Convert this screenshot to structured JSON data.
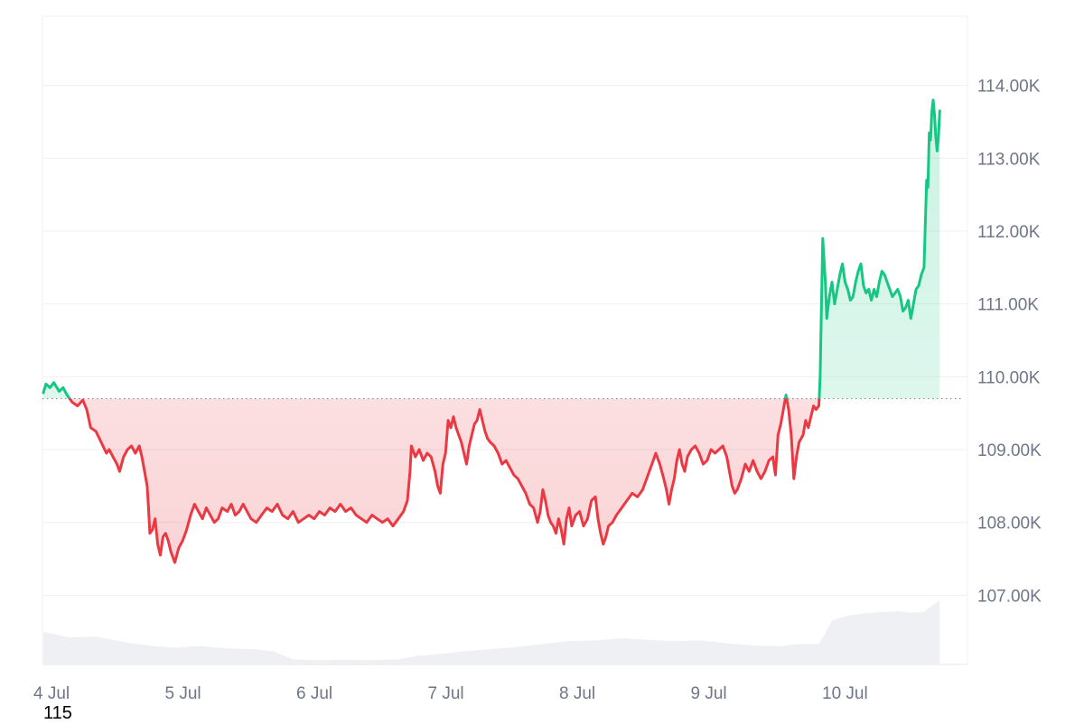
{
  "chart_data": {
    "type": "area",
    "baseline": 109700,
    "ylim": [
      106050,
      114950
    ],
    "y_ticks": [
      107000,
      108000,
      109000,
      110000,
      111000,
      112000,
      113000,
      114000
    ],
    "y_tick_labels": [
      "107.00K",
      "108.00K",
      "109.00K",
      "110.00K",
      "111.00K",
      "112.00K",
      "113.00K",
      "114.00K"
    ],
    "x_range": [
      0,
      7.08
    ],
    "x_ticks": [
      0,
      1,
      2,
      3,
      4,
      5,
      6
    ],
    "x_tick_labels": [
      "4 Jul",
      "5 Jul",
      "6 Jul",
      "7 Jul",
      "8 Jul",
      "9 Jul",
      "10 Jul"
    ],
    "colors": {
      "up": "#16c784",
      "down": "#ea3943",
      "volume": "#eef0f3",
      "grid": "#eef0f3",
      "tick_text": "#6e7687"
    },
    "price": [
      [
        0.0,
        109780
      ],
      [
        0.02,
        109900
      ],
      [
        0.05,
        109850
      ],
      [
        0.08,
        109920
      ],
      [
        0.12,
        109800
      ],
      [
        0.15,
        109850
      ],
      [
        0.18,
        109750
      ],
      [
        0.2,
        109700
      ],
      [
        0.22,
        109650
      ],
      [
        0.26,
        109600
      ],
      [
        0.3,
        109680
      ],
      [
        0.33,
        109550
      ],
      [
        0.36,
        109300
      ],
      [
        0.4,
        109250
      ],
      [
        0.44,
        109100
      ],
      [
        0.48,
        108950
      ],
      [
        0.5,
        109000
      ],
      [
        0.53,
        108900
      ],
      [
        0.56,
        108800
      ],
      [
        0.58,
        108700
      ],
      [
        0.61,
        108900
      ],
      [
        0.64,
        109000
      ],
      [
        0.67,
        109050
      ],
      [
        0.7,
        108950
      ],
      [
        0.73,
        109050
      ],
      [
        0.75,
        108900
      ],
      [
        0.77,
        108700
      ],
      [
        0.79,
        108500
      ],
      [
        0.8,
        108200
      ],
      [
        0.81,
        107850
      ],
      [
        0.83,
        107900
      ],
      [
        0.85,
        108050
      ],
      [
        0.87,
        107700
      ],
      [
        0.89,
        107550
      ],
      [
        0.91,
        107800
      ],
      [
        0.93,
        107850
      ],
      [
        0.95,
        107750
      ],
      [
        0.97,
        107600
      ],
      [
        1.0,
        107450
      ],
      [
        1.03,
        107650
      ],
      [
        1.06,
        107750
      ],
      [
        1.09,
        107900
      ],
      [
        1.12,
        108100
      ],
      [
        1.15,
        108250
      ],
      [
        1.18,
        108150
      ],
      [
        1.21,
        108050
      ],
      [
        1.24,
        108200
      ],
      [
        1.27,
        108100
      ],
      [
        1.3,
        108000
      ],
      [
        1.33,
        108050
      ],
      [
        1.36,
        108200
      ],
      [
        1.4,
        108150
      ],
      [
        1.43,
        108250
      ],
      [
        1.46,
        108100
      ],
      [
        1.49,
        108150
      ],
      [
        1.52,
        108250
      ],
      [
        1.55,
        108150
      ],
      [
        1.58,
        108050
      ],
      [
        1.62,
        108000
      ],
      [
        1.66,
        108100
      ],
      [
        1.7,
        108200
      ],
      [
        1.74,
        108150
      ],
      [
        1.78,
        108250
      ],
      [
        1.82,
        108100
      ],
      [
        1.86,
        108050
      ],
      [
        1.9,
        108150
      ],
      [
        1.94,
        108000
      ],
      [
        1.98,
        108050
      ],
      [
        2.02,
        108100
      ],
      [
        2.06,
        108050
      ],
      [
        2.1,
        108150
      ],
      [
        2.14,
        108100
      ],
      [
        2.18,
        108200
      ],
      [
        2.22,
        108150
      ],
      [
        2.26,
        108250
      ],
      [
        2.3,
        108150
      ],
      [
        2.34,
        108200
      ],
      [
        2.38,
        108100
      ],
      [
        2.42,
        108050
      ],
      [
        2.46,
        108000
      ],
      [
        2.5,
        108100
      ],
      [
        2.54,
        108050
      ],
      [
        2.58,
        108000
      ],
      [
        2.62,
        108050
      ],
      [
        2.66,
        107950
      ],
      [
        2.7,
        108050
      ],
      [
        2.74,
        108150
      ],
      [
        2.77,
        108300
      ],
      [
        2.79,
        108700
      ],
      [
        2.8,
        109050
      ],
      [
        2.83,
        108900
      ],
      [
        2.86,
        109000
      ],
      [
        2.89,
        108850
      ],
      [
        2.92,
        108950
      ],
      [
        2.95,
        108900
      ],
      [
        2.98,
        108700
      ],
      [
        3.0,
        108500
      ],
      [
        3.02,
        108400
      ],
      [
        3.04,
        108800
      ],
      [
        3.06,
        108950
      ],
      [
        3.08,
        109400
      ],
      [
        3.1,
        109300
      ],
      [
        3.12,
        109450
      ],
      [
        3.14,
        109300
      ],
      [
        3.16,
        109200
      ],
      [
        3.18,
        109100
      ],
      [
        3.2,
        108950
      ],
      [
        3.22,
        108800
      ],
      [
        3.24,
        109050
      ],
      [
        3.26,
        109200
      ],
      [
        3.28,
        109350
      ],
      [
        3.3,
        109400
      ],
      [
        3.32,
        109550
      ],
      [
        3.34,
        109400
      ],
      [
        3.36,
        109250
      ],
      [
        3.38,
        109150
      ],
      [
        3.4,
        109100
      ],
      [
        3.43,
        109050
      ],
      [
        3.46,
        108950
      ],
      [
        3.49,
        108800
      ],
      [
        3.52,
        108850
      ],
      [
        3.55,
        108750
      ],
      [
        3.58,
        108650
      ],
      [
        3.61,
        108600
      ],
      [
        3.64,
        108500
      ],
      [
        3.67,
        108400
      ],
      [
        3.7,
        108250
      ],
      [
        3.73,
        108200
      ],
      [
        3.76,
        108000
      ],
      [
        3.78,
        108150
      ],
      [
        3.8,
        108450
      ],
      [
        3.82,
        108300
      ],
      [
        3.84,
        108100
      ],
      [
        3.86,
        108000
      ],
      [
        3.88,
        107950
      ],
      [
        3.9,
        107850
      ],
      [
        3.92,
        108050
      ],
      [
        3.94,
        107900
      ],
      [
        3.96,
        107700
      ],
      [
        3.98,
        108050
      ],
      [
        4.0,
        108200
      ],
      [
        4.02,
        107950
      ],
      [
        4.05,
        108100
      ],
      [
        4.08,
        108150
      ],
      [
        4.11,
        107950
      ],
      [
        4.14,
        108050
      ],
      [
        4.17,
        108300
      ],
      [
        4.2,
        108350
      ],
      [
        4.22,
        108050
      ],
      [
        4.24,
        107850
      ],
      [
        4.26,
        107700
      ],
      [
        4.28,
        107800
      ],
      [
        4.3,
        107950
      ],
      [
        4.33,
        108000
      ],
      [
        4.36,
        108100
      ],
      [
        4.4,
        108200
      ],
      [
        4.44,
        108300
      ],
      [
        4.48,
        108400
      ],
      [
        4.52,
        108350
      ],
      [
        4.56,
        108450
      ],
      [
        4.6,
        108650
      ],
      [
        4.63,
        108800
      ],
      [
        4.66,
        108950
      ],
      [
        4.69,
        108800
      ],
      [
        4.72,
        108600
      ],
      [
        4.74,
        108450
      ],
      [
        4.76,
        108250
      ],
      [
        4.78,
        108450
      ],
      [
        4.8,
        108600
      ],
      [
        4.82,
        108850
      ],
      [
        4.84,
        109000
      ],
      [
        4.86,
        108800
      ],
      [
        4.88,
        108700
      ],
      [
        4.9,
        108900
      ],
      [
        4.93,
        109000
      ],
      [
        4.96,
        109050
      ],
      [
        4.99,
        108950
      ],
      [
        5.02,
        108800
      ],
      [
        5.05,
        108850
      ],
      [
        5.08,
        109000
      ],
      [
        5.11,
        108950
      ],
      [
        5.14,
        109000
      ],
      [
        5.17,
        109050
      ],
      [
        5.2,
        108900
      ],
      [
        5.22,
        108700
      ],
      [
        5.24,
        108500
      ],
      [
        5.26,
        108400
      ],
      [
        5.28,
        108450
      ],
      [
        5.31,
        108600
      ],
      [
        5.34,
        108800
      ],
      [
        5.37,
        108700
      ],
      [
        5.4,
        108850
      ],
      [
        5.43,
        108700
      ],
      [
        5.46,
        108600
      ],
      [
        5.49,
        108700
      ],
      [
        5.52,
        108850
      ],
      [
        5.55,
        108900
      ],
      [
        5.57,
        108650
      ],
      [
        5.59,
        109200
      ],
      [
        5.61,
        109350
      ],
      [
        5.63,
        109550
      ],
      [
        5.65,
        109750
      ],
      [
        5.67,
        109550
      ],
      [
        5.69,
        109200
      ],
      [
        5.71,
        108600
      ],
      [
        5.73,
        108900
      ],
      [
        5.75,
        109100
      ],
      [
        5.78,
        109200
      ],
      [
        5.8,
        109400
      ],
      [
        5.82,
        109300
      ],
      [
        5.84,
        109450
      ],
      [
        5.86,
        109600
      ],
      [
        5.88,
        109550
      ],
      [
        5.9,
        109600
      ],
      [
        5.91,
        110000
      ],
      [
        5.92,
        111000
      ],
      [
        5.93,
        111900
      ],
      [
        5.95,
        111300
      ],
      [
        5.96,
        110800
      ],
      [
        5.98,
        111100
      ],
      [
        6.0,
        111300
      ],
      [
        6.02,
        111000
      ],
      [
        6.04,
        111200
      ],
      [
        6.06,
        111400
      ],
      [
        6.08,
        111550
      ],
      [
        6.1,
        111300
      ],
      [
        6.12,
        111200
      ],
      [
        6.14,
        111050
      ],
      [
        6.16,
        111100
      ],
      [
        6.18,
        111300
      ],
      [
        6.2,
        111450
      ],
      [
        6.22,
        111550
      ],
      [
        6.24,
        111250
      ],
      [
        6.26,
        111150
      ],
      [
        6.28,
        111200
      ],
      [
        6.3,
        111050
      ],
      [
        6.32,
        111200
      ],
      [
        6.34,
        111100
      ],
      [
        6.36,
        111300
      ],
      [
        6.38,
        111450
      ],
      [
        6.4,
        111400
      ],
      [
        6.42,
        111300
      ],
      [
        6.44,
        111200
      ],
      [
        6.46,
        111100
      ],
      [
        6.48,
        111150
      ],
      [
        6.5,
        111200
      ],
      [
        6.52,
        111100
      ],
      [
        6.54,
        110900
      ],
      [
        6.56,
        110950
      ],
      [
        6.58,
        111050
      ],
      [
        6.6,
        110800
      ],
      [
        6.62,
        111000
      ],
      [
        6.64,
        111200
      ],
      [
        6.66,
        111250
      ],
      [
        6.68,
        111400
      ],
      [
        6.7,
        111500
      ],
      [
        6.72,
        112700
      ],
      [
        6.73,
        112600
      ],
      [
        6.74,
        113350
      ],
      [
        6.75,
        113250
      ],
      [
        6.76,
        113650
      ],
      [
        6.77,
        113800
      ],
      [
        6.78,
        113600
      ],
      [
        6.79,
        113300
      ],
      [
        6.8,
        113100
      ],
      [
        6.81,
        113300
      ],
      [
        6.82,
        113650
      ]
    ],
    "volume": [
      [
        0.0,
        106500
      ],
      [
        0.2,
        106420
      ],
      [
        0.4,
        106430
      ],
      [
        0.55,
        106380
      ],
      [
        0.7,
        106330
      ],
      [
        0.85,
        106300
      ],
      [
        1.0,
        106280
      ],
      [
        1.2,
        106300
      ],
      [
        1.4,
        106270
      ],
      [
        1.6,
        106260
      ],
      [
        1.75,
        106230
      ],
      [
        1.9,
        106120
      ],
      [
        2.1,
        106110
      ],
      [
        2.3,
        106115
      ],
      [
        2.5,
        106110
      ],
      [
        2.7,
        106120
      ],
      [
        2.85,
        106170
      ],
      [
        3.0,
        106190
      ],
      [
        3.2,
        106230
      ],
      [
        3.4,
        106260
      ],
      [
        3.6,
        106290
      ],
      [
        3.8,
        106330
      ],
      [
        4.0,
        106370
      ],
      [
        4.2,
        106380
      ],
      [
        4.4,
        106410
      ],
      [
        4.6,
        106390
      ],
      [
        4.8,
        106370
      ],
      [
        5.0,
        106380
      ],
      [
        5.2,
        106340
      ],
      [
        5.4,
        106310
      ],
      [
        5.6,
        106300
      ],
      [
        5.75,
        106330
      ],
      [
        5.9,
        106330
      ],
      [
        5.95,
        106480
      ],
      [
        6.0,
        106650
      ],
      [
        6.1,
        106710
      ],
      [
        6.2,
        106740
      ],
      [
        6.3,
        106760
      ],
      [
        6.4,
        106770
      ],
      [
        6.5,
        106780
      ],
      [
        6.6,
        106760
      ],
      [
        6.7,
        106770
      ],
      [
        6.75,
        106840
      ],
      [
        6.82,
        106930
      ]
    ]
  },
  "bottom_number": "115"
}
